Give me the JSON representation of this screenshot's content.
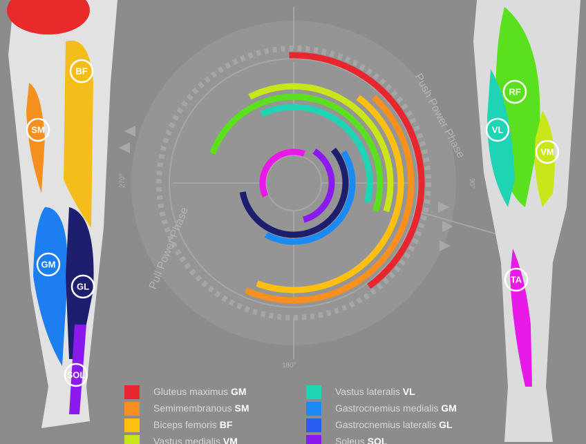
{
  "badges": [
    "BF",
    "SM",
    "GM",
    "GL",
    "SOL",
    "RF",
    "VL",
    "VM",
    "TA"
  ],
  "angles": {
    "left": "270°",
    "right": "90°",
    "bottom": "180°"
  },
  "phases": {
    "push": "Push Power Phase",
    "pull": "Pull Power Phase"
  },
  "legend": [
    {
      "name": "Gluteus maximus",
      "abbr": "GM",
      "color": "#e8262e"
    },
    {
      "name": "Semimembranous",
      "abbr": "SM",
      "color": "#f7901e"
    },
    {
      "name": "Biceps femoris",
      "abbr": "BF",
      "color": "#fdc010"
    },
    {
      "name": "Vastus medialis",
      "abbr": "VM",
      "color": "#c8e619"
    },
    {
      "name": "Vastus lateralis",
      "abbr": "VL",
      "color": "#1fd4b5"
    },
    {
      "name": "Gastrocnemius medialis",
      "abbr": "GM",
      "color": "#1c8af5"
    },
    {
      "name": "Gastrocnemius lateralis",
      "abbr": "GL",
      "color": "#2a5ef0"
    },
    {
      "name": "Soleus",
      "abbr": "SOL",
      "color": "#8a1aee"
    }
  ]
}
